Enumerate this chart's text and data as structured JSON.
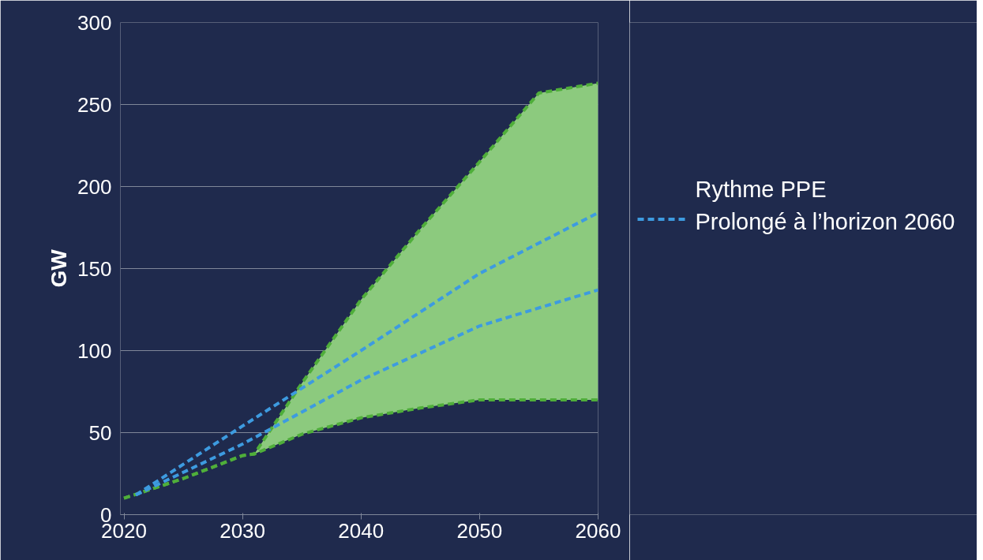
{
  "chart_data": {
    "type": "line",
    "ylabel": "GW",
    "x": [
      2020,
      2025,
      2030,
      2031,
      2035,
      2040,
      2045,
      2050,
      2055,
      2060
    ],
    "series": [
      {
        "color": "#4fae3a",
        "values": [
          10,
          22,
          36,
          37,
          80,
          131,
          174,
          215,
          257,
          263
        ],
        "lower": [
          10,
          22,
          36,
          37,
          49,
          59,
          65,
          70,
          70,
          70
        ],
        "upper": [
          10,
          22,
          36,
          37,
          80,
          131,
          174,
          215,
          257,
          263
        ]
      },
      {
        "color": "#4fae3a",
        "values": [
          10,
          22,
          36,
          37,
          49,
          59,
          65,
          70,
          70,
          70
        ]
      },
      {
        "name": "Rythme PPE\nProlongé à l’horizon 2060",
        "color": "#3d9be0",
        "x": [
          2021,
          2030,
          2040,
          2050,
          2060
        ],
        "values": [
          12,
          54,
          100,
          147,
          184
        ]
      },
      {
        "color": "#3d9be0",
        "x": [
          2021,
          2030,
          2040,
          2050,
          2060
        ],
        "values": [
          12,
          43,
          82,
          115,
          137
        ]
      }
    ],
    "xlim": [
      2019.7,
      2060
    ],
    "ylim": [
      0,
      300
    ],
    "xticks": [
      2020,
      2030,
      2040,
      2050,
      2060
    ],
    "yticks": [
      0,
      50,
      100,
      150,
      200,
      250,
      300
    ],
    "grid": "y",
    "legend": "right",
    "line_style": "dashed",
    "marker": "none"
  }
}
